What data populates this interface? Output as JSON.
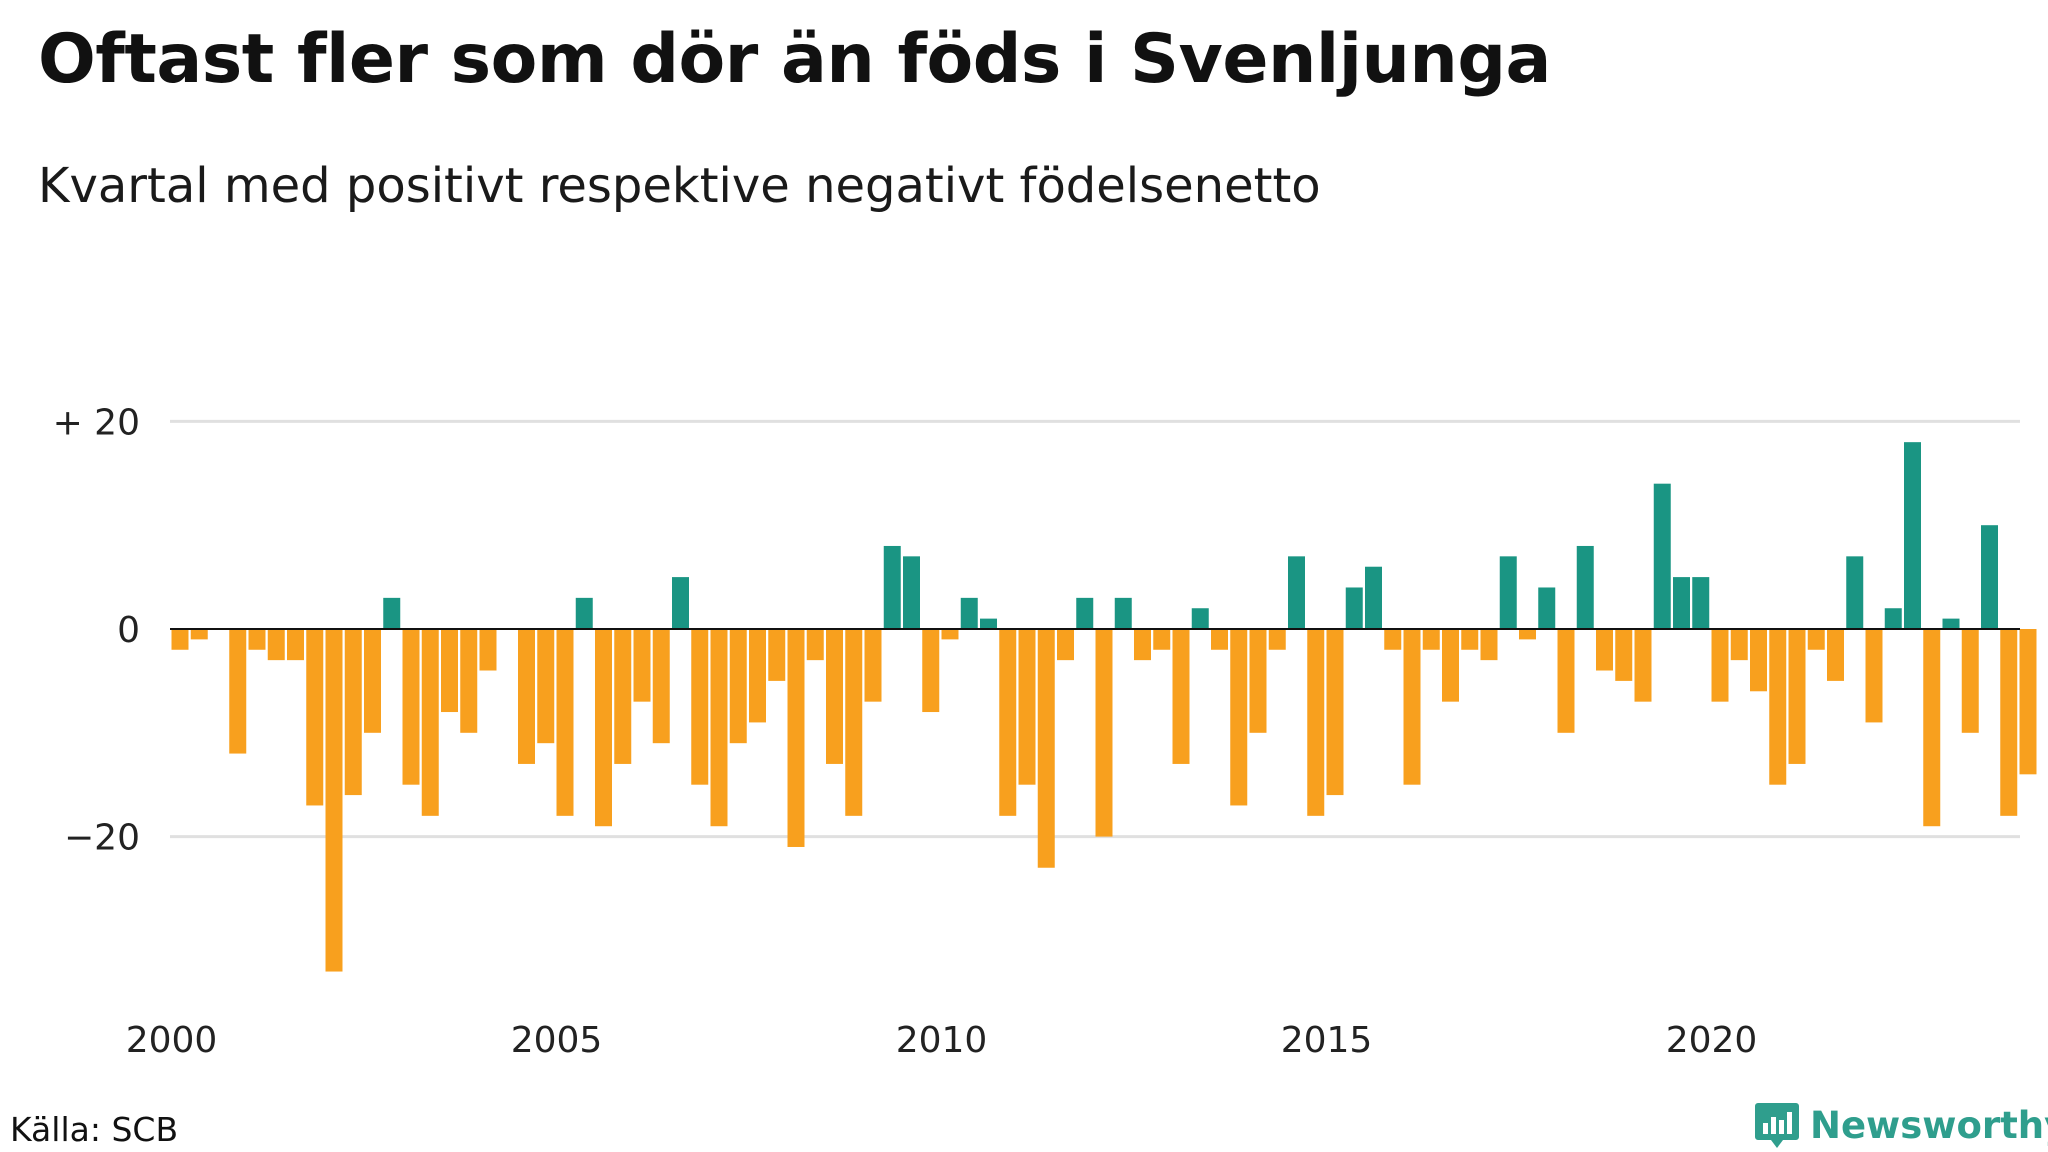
{
  "title": "Oftast fler som dör än föds i Svenljunga",
  "subtitle": "Kvartal med positivt respektive negativt födelsenetto",
  "source": "Källa: SCB",
  "brand": "Newsworthy",
  "colors": {
    "positive": "#1a9583",
    "negative": "#f8a01e",
    "grid": "#e0e0e0",
    "axis": "#111111"
  },
  "chart_data": {
    "type": "bar",
    "x_start": "2000-Q1",
    "values": [
      -2,
      -1,
      0,
      -12,
      -2,
      -3,
      -3,
      -17,
      -33,
      -16,
      -10,
      3,
      -15,
      -18,
      -8,
      -10,
      -4,
      0,
      -13,
      -11,
      -18,
      3,
      -19,
      -13,
      -7,
      -11,
      5,
      -15,
      -19,
      -11,
      -9,
      -5,
      -21,
      -3,
      -13,
      -18,
      -7,
      8,
      7,
      -8,
      -1,
      3,
      1,
      -18,
      -15,
      -23,
      -3,
      3,
      -20,
      3,
      -3,
      -2,
      -13,
      2,
      -2,
      -17,
      -10,
      -2,
      7,
      -18,
      -16,
      4,
      6,
      -2,
      -15,
      -2,
      -7,
      -2,
      -3,
      7,
      -1,
      4,
      -10,
      8,
      -4,
      -5,
      -7,
      14,
      5,
      5,
      -7,
      -3,
      -6,
      -15,
      -13,
      -2,
      -5,
      7,
      -9,
      2,
      18,
      -19,
      1,
      -10,
      10,
      -18,
      -14
    ],
    "ylim": [
      -36,
      25
    ],
    "y_ticks": [
      {
        "value": 20,
        "label": "+ 20"
      },
      {
        "value": 0,
        "label": "0"
      },
      {
        "value": -20,
        "label": "−20"
      }
    ],
    "x_ticks": [
      {
        "index": 0,
        "label": "2000"
      },
      {
        "index": 20,
        "label": "2005"
      },
      {
        "index": 40,
        "label": "2010"
      },
      {
        "index": 60,
        "label": "2015"
      },
      {
        "index": 80,
        "label": "2020"
      }
    ],
    "grid": true,
    "legend": "none"
  }
}
